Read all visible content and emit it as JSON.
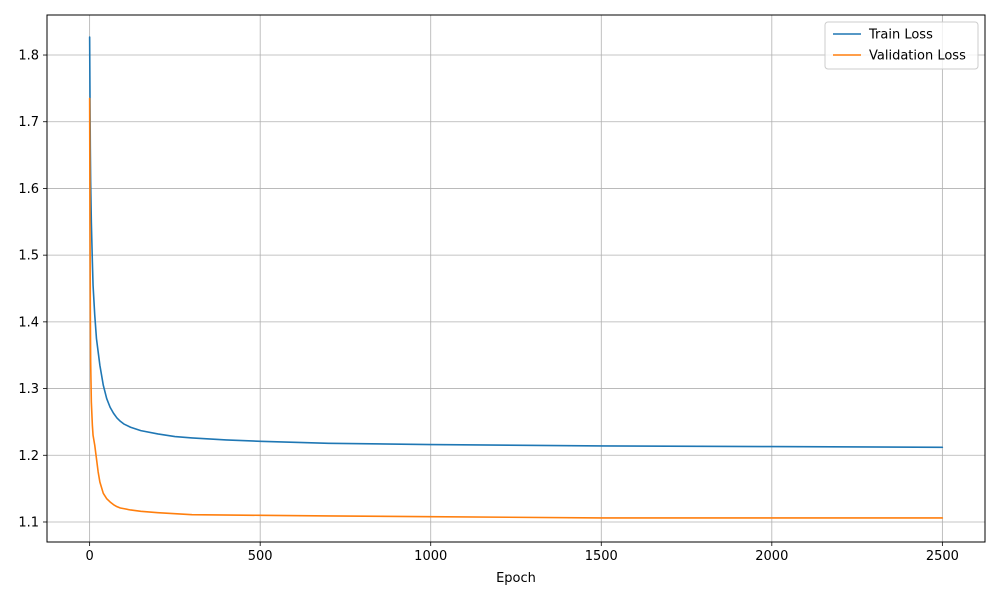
{
  "chart_data": {
    "type": "line",
    "title": "",
    "xlabel": "Epoch",
    "ylabel": "",
    "xlim": [
      -125,
      2625
    ],
    "ylim": [
      1.07,
      1.86
    ],
    "xticks": [
      0,
      500,
      1000,
      1500,
      2000,
      2500
    ],
    "yticks": [
      1.1,
      1.2,
      1.3,
      1.4,
      1.5,
      1.6,
      1.7,
      1.8
    ],
    "xtick_labels": [
      "0",
      "500",
      "1000",
      "1500",
      "2000",
      "2500"
    ],
    "ytick_labels": [
      "1.1",
      "1.2",
      "1.3",
      "1.4",
      "1.5",
      "1.6",
      "1.7",
      "1.8"
    ],
    "grid": true,
    "legend_position": "top-right",
    "series": [
      {
        "name": "Train Loss",
        "color": "#1f77b4",
        "x": [
          0,
          1,
          2,
          3,
          5,
          8,
          10,
          15,
          20,
          25,
          30,
          40,
          50,
          60,
          70,
          80,
          90,
          100,
          120,
          150,
          200,
          250,
          300,
          400,
          500,
          700,
          1000,
          1500,
          2000,
          2500
        ],
        "y": [
          1.827,
          1.74,
          1.66,
          1.61,
          1.55,
          1.49,
          1.455,
          1.41,
          1.375,
          1.355,
          1.335,
          1.305,
          1.285,
          1.272,
          1.263,
          1.256,
          1.251,
          1.247,
          1.242,
          1.237,
          1.232,
          1.228,
          1.226,
          1.223,
          1.221,
          1.218,
          1.216,
          1.214,
          1.213,
          1.212
        ]
      },
      {
        "name": "Validation Loss",
        "color": "#ff7f0e",
        "x": [
          0,
          1,
          2,
          3,
          5,
          8,
          10,
          15,
          20,
          25,
          30,
          40,
          50,
          60,
          70,
          80,
          90,
          100,
          120,
          150,
          200,
          300,
          500,
          700,
          1000,
          1500,
          2000,
          2500
        ],
        "y": [
          1.735,
          1.55,
          1.42,
          1.34,
          1.28,
          1.245,
          1.23,
          1.215,
          1.195,
          1.175,
          1.16,
          1.143,
          1.135,
          1.13,
          1.126,
          1.123,
          1.121,
          1.12,
          1.118,
          1.116,
          1.114,
          1.111,
          1.11,
          1.109,
          1.108,
          1.106,
          1.106,
          1.106
        ]
      }
    ]
  }
}
